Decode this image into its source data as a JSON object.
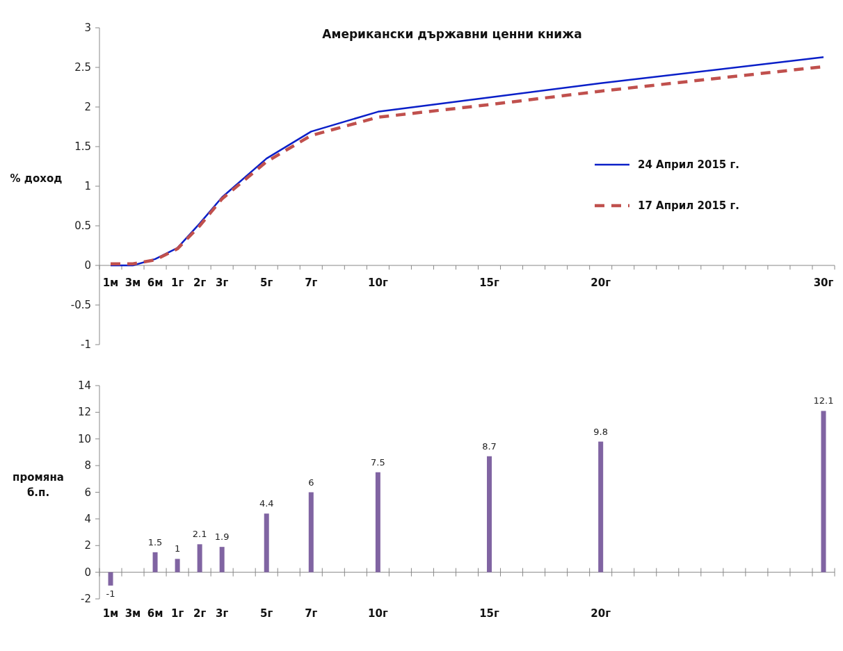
{
  "chart_data": [
    {
      "type": "line",
      "title": "Американски държавни ценни книжа",
      "ylabel": "% доход",
      "categories": [
        "1м",
        "3м",
        "6м",
        "1г",
        "2г",
        "3г",
        null,
        "5г",
        null,
        "7г",
        null,
        null,
        "10г",
        null,
        null,
        null,
        null,
        "15г",
        null,
        null,
        null,
        null,
        "20г",
        null,
        null,
        null,
        null,
        null,
        null,
        null,
        null,
        null,
        "30г"
      ],
      "series": [
        {
          "name": "24 Април 2015 г.",
          "color": "#0a1fc8",
          "line_style": "solid",
          "values": [
            0.0,
            0.0,
            0.08,
            0.22,
            0.53,
            0.86,
            null,
            1.35,
            null,
            1.69,
            null,
            null,
            1.94,
            null,
            null,
            null,
            null,
            2.12,
            null,
            null,
            null,
            null,
            2.3,
            null,
            null,
            null,
            null,
            null,
            null,
            null,
            null,
            null,
            2.63
          ]
        },
        {
          "name": "17 Април 2015 г.",
          "color": "#c0504d",
          "line_style": "dashed",
          "values": [
            0.02,
            0.02,
            0.07,
            0.21,
            0.5,
            0.84,
            null,
            1.31,
            null,
            1.64,
            null,
            null,
            1.87,
            null,
            null,
            null,
            null,
            2.03,
            null,
            null,
            null,
            null,
            2.2,
            null,
            null,
            null,
            null,
            null,
            null,
            null,
            null,
            null,
            2.51
          ]
        }
      ],
      "ylim": [
        -1,
        3
      ],
      "yticks": [
        -1,
        -0.5,
        0,
        0.5,
        1,
        1.5,
        2,
        2.5,
        3
      ],
      "legend": "right"
    },
    {
      "type": "bar",
      "ylabel": "промяна б.п.",
      "categories": [
        "1м",
        "3м",
        "6м",
        "1г",
        "2г",
        "3г",
        null,
        "5г",
        null,
        "7г",
        null,
        null,
        "10г",
        null,
        null,
        null,
        null,
        "15г",
        null,
        null,
        null,
        null,
        "20г",
        null,
        null,
        null,
        null,
        null,
        null,
        null,
        null,
        null,
        null
      ],
      "series": [
        {
          "color": "#8064a2",
          "values": [
            -1,
            null,
            1.5,
            1,
            2.1,
            1.9,
            null,
            4.4,
            null,
            6,
            null,
            null,
            7.5,
            null,
            null,
            null,
            null,
            8.7,
            null,
            null,
            null,
            null,
            9.8,
            null,
            null,
            null,
            null,
            null,
            null,
            null,
            null,
            null,
            12.1
          ]
        }
      ],
      "ylim": [
        -2,
        14
      ],
      "yticks": [
        -2,
        0,
        2,
        4,
        6,
        8,
        10,
        12,
        14
      ],
      "data_labels": true,
      "legend": false
    }
  ]
}
